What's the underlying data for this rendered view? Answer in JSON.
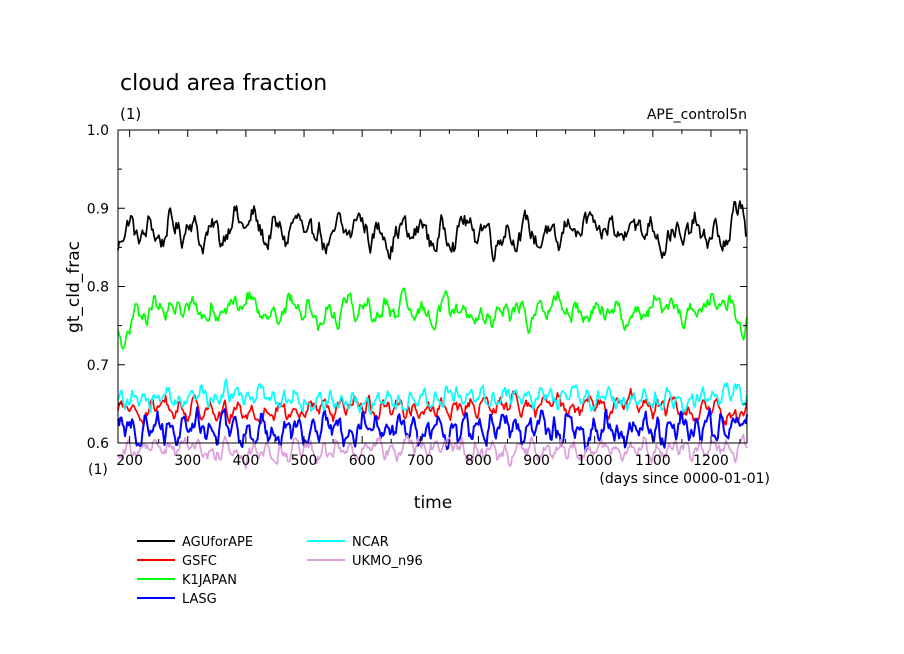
{
  "chart_data": {
    "type": "line",
    "title": "cloud area fraction",
    "units": "(1)",
    "experiment": "APE_control5n",
    "xlabel": "time",
    "xunits": "(days since 0000-01-01)",
    "ylabel": "gt_cld_frac",
    "yunits": "(1)",
    "xlim": [
      180,
      1262
    ],
    "ylim": [
      0.6,
      1.0
    ],
    "xticks": [
      200,
      300,
      400,
      500,
      600,
      700,
      800,
      900,
      1000,
      1100,
      1200
    ],
    "xtick_labels": [
      "200",
      "300",
      "400",
      "500",
      "600",
      "700",
      "800",
      "900",
      "1000",
      "1100",
      "1200"
    ],
    "yticks": [
      0.6,
      0.7,
      0.8,
      0.9,
      1.0
    ],
    "ytick_labels": [
      "0.6",
      "0.7",
      "0.8",
      "0.9",
      "1.0"
    ],
    "grid": false,
    "legend_position": "bottom-left",
    "series": [
      {
        "name": "AGUforAPE",
        "color": "#000000",
        "mean": 0.87,
        "amplitude": 0.022,
        "period_days": 36,
        "x": [
          180,
          250,
          320,
          390,
          460,
          530,
          600,
          670,
          740,
          810,
          880,
          950,
          1020,
          1090,
          1160,
          1230,
          1255,
          1262
        ],
        "y": [
          0.862,
          0.875,
          0.868,
          0.88,
          0.872,
          0.866,
          0.874,
          0.865,
          0.869,
          0.871,
          0.863,
          0.87,
          0.876,
          0.872,
          0.864,
          0.868,
          0.905,
          0.873
        ]
      },
      {
        "name": "GSFC",
        "color": "#ff0000",
        "mean": 0.643,
        "amplitude": 0.014,
        "period_days": 25,
        "x": [
          180,
          290,
          400,
          510,
          620,
          730,
          840,
          950,
          1060,
          1170,
          1262
        ],
        "y": [
          0.64,
          0.645,
          0.638,
          0.642,
          0.646,
          0.641,
          0.65,
          0.648,
          0.652,
          0.64,
          0.638
        ]
      },
      {
        "name": "K1JAPAN",
        "color": "#00ff00",
        "mean": 0.77,
        "amplitude": 0.018,
        "period_days": 33,
        "x": [
          180,
          250,
          320,
          390,
          460,
          530,
          600,
          670,
          740,
          810,
          880,
          950,
          1020,
          1090,
          1160,
          1230,
          1262
        ],
        "y": [
          0.735,
          0.775,
          0.768,
          0.776,
          0.77,
          0.764,
          0.773,
          0.766,
          0.77,
          0.762,
          0.768,
          0.772,
          0.765,
          0.77,
          0.771,
          0.775,
          0.75
        ]
      },
      {
        "name": "LASG",
        "color": "#0000ff",
        "mean": 0.62,
        "amplitude": 0.02,
        "period_days": 22,
        "x": [
          180,
          290,
          400,
          510,
          620,
          730,
          840,
          950,
          1060,
          1170,
          1262
        ],
        "y": [
          0.618,
          0.622,
          0.615,
          0.62,
          0.625,
          0.612,
          0.621,
          0.618,
          0.615,
          0.62,
          0.625
        ]
      },
      {
        "name": "NCAR",
        "color": "#00ffff",
        "mean": 0.656,
        "amplitude": 0.013,
        "period_days": 20,
        "x": [
          180,
          290,
          400,
          510,
          620,
          730,
          840,
          950,
          1060,
          1170,
          1262
        ],
        "y": [
          0.655,
          0.658,
          0.662,
          0.654,
          0.65,
          0.656,
          0.66,
          0.658,
          0.655,
          0.657,
          0.665
        ]
      },
      {
        "name": "UKMO_n96",
        "color": "#dda0dd",
        "mean": 0.591,
        "amplitude": 0.014,
        "period_days": 24,
        "x": [
          180,
          290,
          400,
          510,
          620,
          730,
          840,
          950,
          1060,
          1170,
          1262
        ],
        "y": [
          0.59,
          0.592,
          0.588,
          0.591,
          0.593,
          0.595,
          0.589,
          0.59,
          0.592,
          0.591,
          0.594
        ]
      }
    ]
  }
}
